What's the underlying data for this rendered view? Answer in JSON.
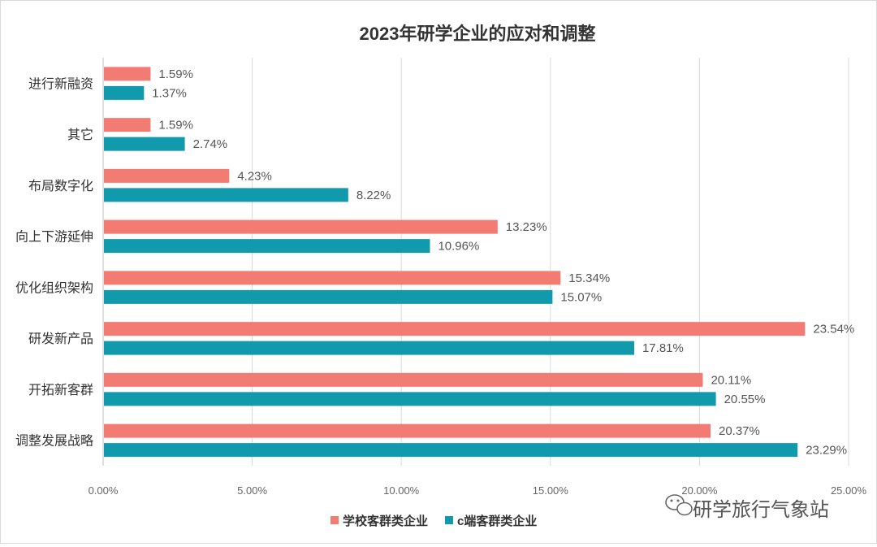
{
  "chart_data": {
    "type": "bar",
    "orientation": "horizontal",
    "title": "2023年研学企业的应对和调整",
    "categories": [
      "进行新融资",
      "其它",
      "布局数字化",
      "向上下游延伸",
      "优化组织架构",
      "研发新产品",
      "开拓新客群",
      "调整发展战略"
    ],
    "series": [
      {
        "name": "学校客群类企业",
        "color": "#f27c74",
        "values": [
          1.59,
          1.59,
          4.23,
          13.23,
          15.34,
          23.54,
          20.11,
          20.37
        ],
        "labels": [
          "1.59%",
          "1.59%",
          "4.23%",
          "13.23%",
          "15.34%",
          "23.54%",
          "20.11%",
          "20.37%"
        ]
      },
      {
        "name": "c端客群类企业",
        "color": "#1199ac",
        "values": [
          1.37,
          2.74,
          8.22,
          10.96,
          15.07,
          17.81,
          20.55,
          23.29
        ],
        "labels": [
          "1.37%",
          "2.74%",
          "8.22%",
          "10.96%",
          "15.07%",
          "17.81%",
          "20.55%",
          "23.29%"
        ]
      }
    ],
    "xlim": [
      0,
      25
    ],
    "x_ticks": [
      0,
      5,
      10,
      15,
      20,
      25
    ],
    "x_tick_labels": [
      "0.00%",
      "5.00%",
      "10.00%",
      "15.00%",
      "20.00%",
      "25.00%"
    ],
    "grid": "vertical",
    "legend_position": "bottom"
  },
  "watermark": {
    "text": "研学旅行气象站",
    "icon": "wechat-icon"
  }
}
